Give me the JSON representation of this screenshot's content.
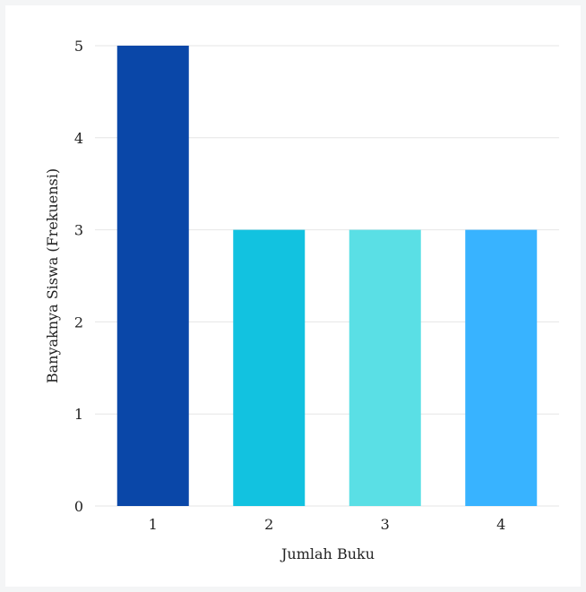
{
  "chart_data": {
    "type": "bar",
    "categories": [
      "1",
      "2",
      "3",
      "4"
    ],
    "values": [
      5,
      3,
      3,
      3
    ],
    "colors": [
      "#0a47a8",
      "#12c2e0",
      "#5adfe5",
      "#38b3ff"
    ],
    "ylim": [
      0,
      5
    ],
    "yticks": [
      "0",
      "1",
      "2",
      "3",
      "4",
      "5"
    ],
    "xlabel": "Jumlah Buku",
    "ylabel": "Banyaknya Siswa (Frekuensi)",
    "grid": true,
    "gridColor": "#e6e6e6"
  }
}
